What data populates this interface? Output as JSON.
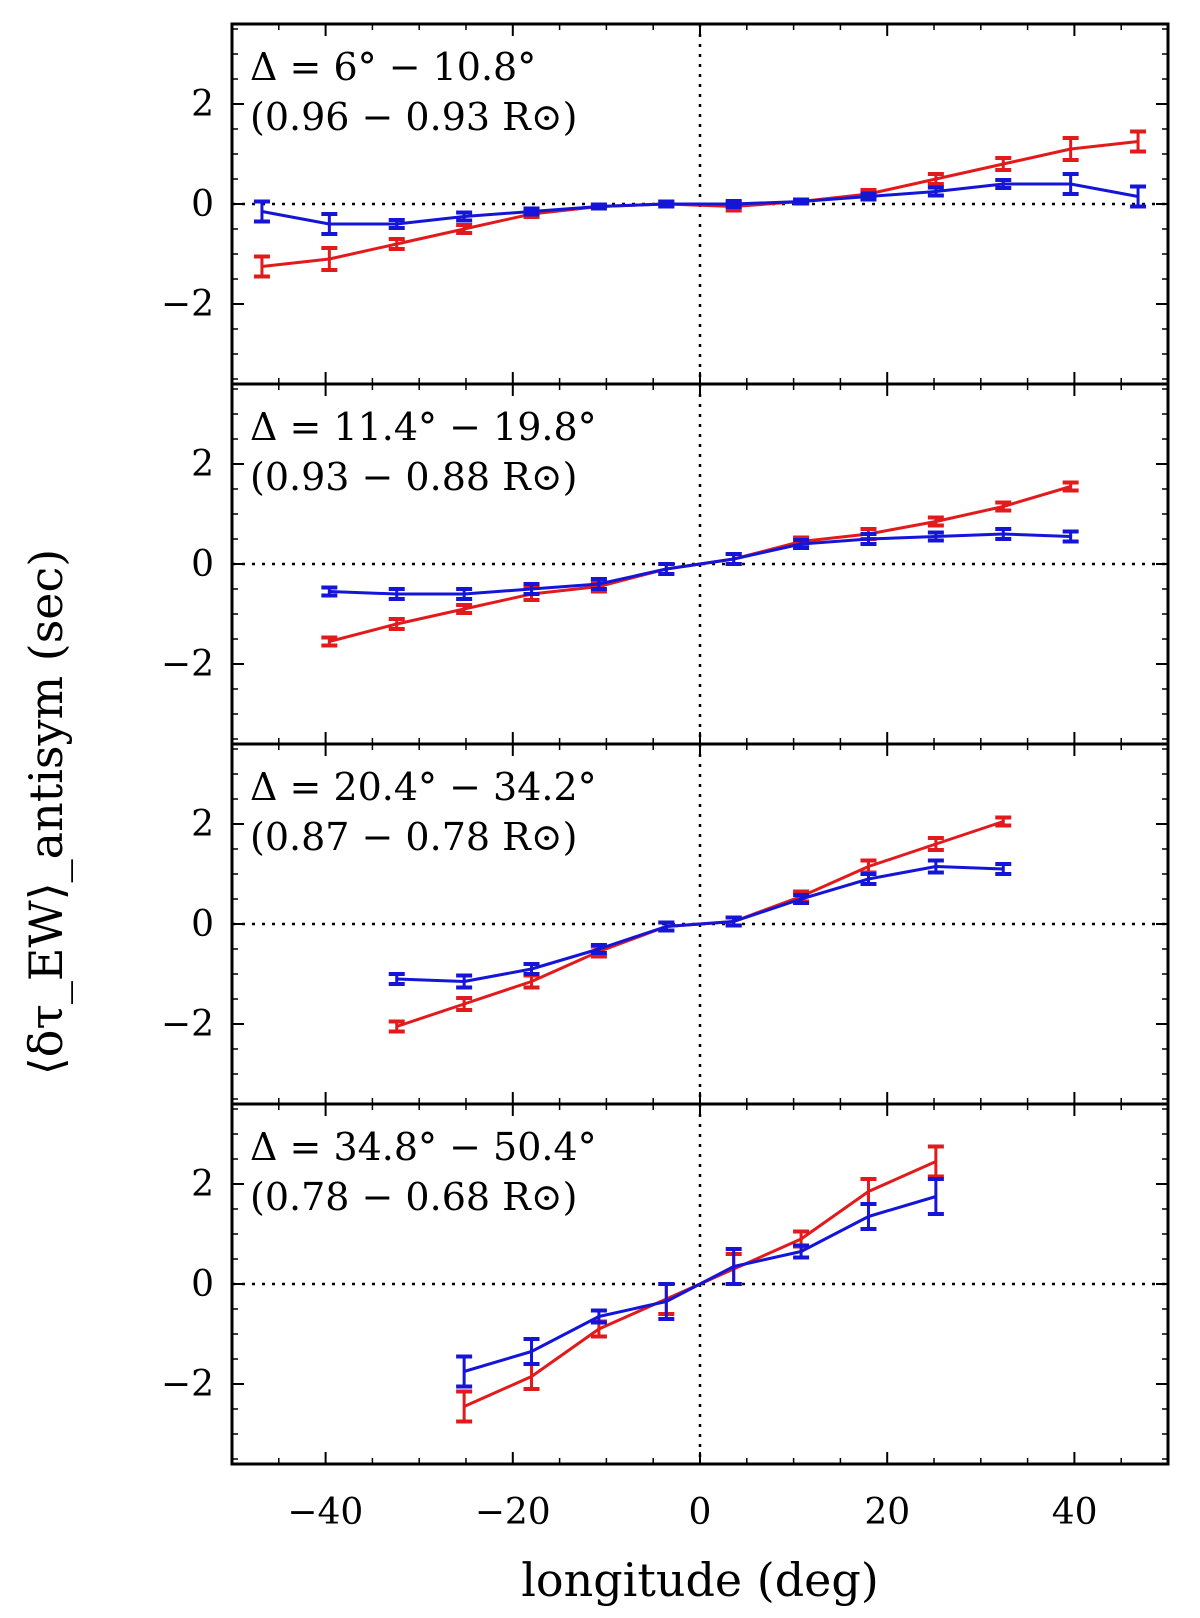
{
  "chart_data": {
    "type": "line",
    "xlabel": "longitude (deg)",
    "ylabel": "⟨δτ_EW⟩_antisym (sec)",
    "xlim": [
      -50,
      50
    ],
    "ylim": [
      -3.6,
      3.6
    ],
    "xticks": [
      -40,
      -20,
      0,
      20,
      40
    ],
    "xtick_labels": [
      "−40",
      "−20",
      "0",
      "20",
      "40"
    ],
    "yticks": [
      2,
      0,
      -2
    ],
    "ytick_labels": [
      "2",
      "0",
      "−2"
    ],
    "colors": {
      "red": "#e31a1c",
      "blue": "#1515d8"
    },
    "panels": [
      {
        "annotation_line1": "Δ = 6° − 10.8°",
        "annotation_line2": "(0.96 − 0.93 R⊙)",
        "series": [
          {
            "name": "red",
            "x": [
              -46.8,
              -39.6,
              -32.4,
              -25.2,
              -18,
              -10.8,
              -3.6,
              3.6,
              10.8,
              18,
              25.2,
              32.4,
              39.6,
              46.8
            ],
            "values": [
              -1.25,
              -1.1,
              -0.8,
              -0.5,
              -0.2,
              -0.05,
              0.0,
              -0.05,
              0.05,
              0.2,
              0.5,
              0.8,
              1.1,
              1.25
            ],
            "errors": [
              0.2,
              0.22,
              0.1,
              0.08,
              0.06,
              0.04,
              0.05,
              0.08,
              0.04,
              0.08,
              0.1,
              0.12,
              0.22,
              0.2
            ]
          },
          {
            "name": "blue",
            "x": [
              -46.8,
              -39.6,
              -32.4,
              -25.2,
              -18,
              -10.8,
              -3.6,
              3.6,
              10.8,
              18,
              25.2,
              32.4,
              39.6,
              46.8
            ],
            "values": [
              -0.15,
              -0.4,
              -0.4,
              -0.25,
              -0.15,
              -0.05,
              0.0,
              0.0,
              0.05,
              0.15,
              0.25,
              0.4,
              0.4,
              0.15
            ],
            "errors": [
              0.2,
              0.2,
              0.08,
              0.08,
              0.06,
              0.04,
              0.05,
              0.06,
              0.04,
              0.06,
              0.08,
              0.08,
              0.2,
              0.2
            ]
          }
        ]
      },
      {
        "annotation_line1": "Δ = 11.4° − 19.8°",
        "annotation_line2": "(0.93 − 0.88 R⊙)",
        "series": [
          {
            "name": "red",
            "x": [
              -39.6,
              -32.4,
              -25.2,
              -18,
              -10.8,
              -3.6,
              3.6,
              10.8,
              18,
              25.2,
              32.4,
              39.6
            ],
            "values": [
              -1.55,
              -1.2,
              -0.9,
              -0.6,
              -0.45,
              -0.1,
              0.1,
              0.45,
              0.6,
              0.85,
              1.15,
              1.55
            ],
            "errors": [
              0.08,
              0.1,
              0.08,
              0.12,
              0.1,
              0.1,
              0.1,
              0.08,
              0.1,
              0.08,
              0.08,
              0.08
            ]
          },
          {
            "name": "blue",
            "x": [
              -39.6,
              -32.4,
              -25.2,
              -18,
              -10.8,
              -3.6,
              3.6,
              10.8,
              18,
              25.2,
              32.4,
              39.6
            ],
            "values": [
              -0.55,
              -0.6,
              -0.6,
              -0.5,
              -0.4,
              -0.1,
              0.1,
              0.4,
              0.5,
              0.55,
              0.6,
              0.55
            ],
            "errors": [
              0.08,
              0.1,
              0.1,
              0.1,
              0.1,
              0.1,
              0.1,
              0.08,
              0.1,
              0.08,
              0.1,
              0.1
            ]
          }
        ]
      },
      {
        "annotation_line1": "Δ = 20.4° − 34.2°",
        "annotation_line2": "(0.87 − 0.78 R⊙)",
        "series": [
          {
            "name": "red",
            "x": [
              -32.4,
              -25.2,
              -18,
              -10.8,
              -3.6,
              3.6,
              10.8,
              18,
              25.2,
              32.4
            ],
            "values": [
              -2.05,
              -1.6,
              -1.15,
              -0.55,
              -0.05,
              0.05,
              0.55,
              1.15,
              1.6,
              2.05
            ],
            "errors": [
              0.1,
              0.12,
              0.12,
              0.1,
              0.08,
              0.08,
              0.1,
              0.12,
              0.12,
              0.08
            ]
          },
          {
            "name": "blue",
            "x": [
              -32.4,
              -25.2,
              -18,
              -10.8,
              -3.6,
              3.6,
              10.8,
              18,
              25.2,
              32.4
            ],
            "values": [
              -1.1,
              -1.15,
              -0.9,
              -0.5,
              -0.05,
              0.05,
              0.5,
              0.9,
              1.15,
              1.1
            ],
            "errors": [
              0.1,
              0.12,
              0.1,
              0.08,
              0.08,
              0.08,
              0.08,
              0.1,
              0.12,
              0.1
            ]
          }
        ]
      },
      {
        "annotation_line1": "Δ = 34.8° − 50.4°",
        "annotation_line2": "(0.78 − 0.68 R⊙)",
        "series": [
          {
            "name": "red",
            "x": [
              -25.2,
              -18,
              -10.8,
              -3.6,
              3.6,
              10.8,
              18,
              25.2
            ],
            "values": [
              -2.45,
              -1.85,
              -0.9,
              -0.3,
              0.3,
              0.9,
              1.85,
              2.45
            ],
            "errors": [
              0.3,
              0.25,
              0.15,
              0.3,
              0.3,
              0.15,
              0.25,
              0.3
            ]
          },
          {
            "name": "blue",
            "x": [
              -25.2,
              -18,
              -10.8,
              -3.6,
              3.6,
              10.8,
              18,
              25.2
            ],
            "values": [
              -1.75,
              -1.35,
              -0.65,
              -0.35,
              0.35,
              0.65,
              1.35,
              1.75
            ],
            "errors": [
              0.3,
              0.25,
              0.12,
              0.35,
              0.35,
              0.12,
              0.25,
              0.35
            ]
          }
        ]
      }
    ]
  }
}
